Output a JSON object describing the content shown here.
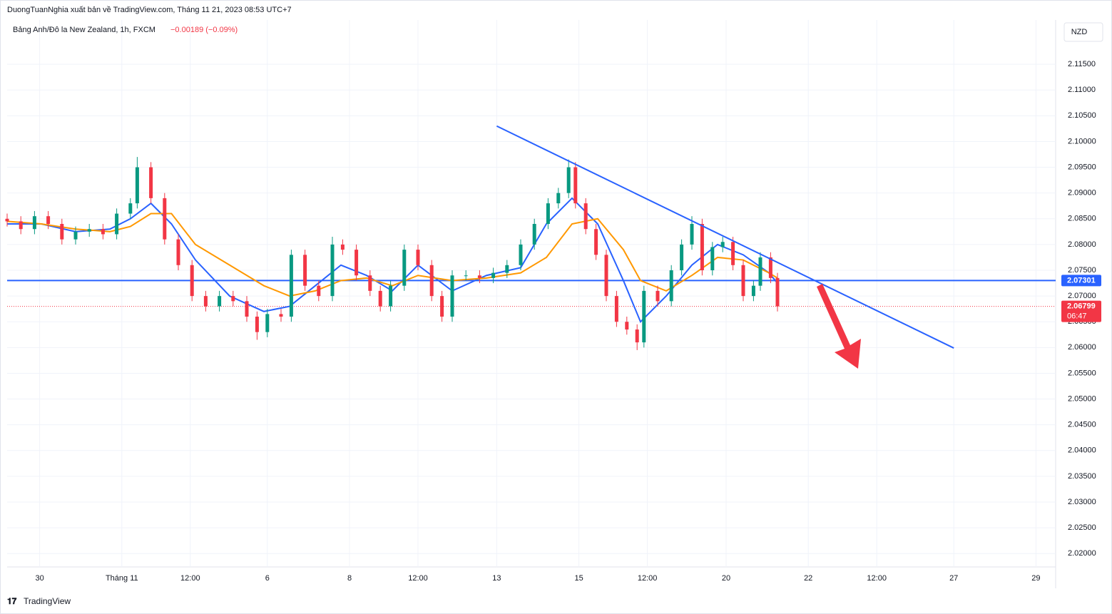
{
  "header": {
    "publisher": "DuongTuanNghia xuất bản về TradingView.com, Tháng 11 21, 2023 08:53 UTC+7",
    "symbol": "Bảng Anh/Đô la New Zealand, 1h, FXCM",
    "change": "−0.00189 (−0.09%)",
    "currency": "NZD",
    "brand": "TradingView"
  },
  "chart_data": {
    "type": "candlestick",
    "up_color": "#089981",
    "down_color": "#f23645",
    "grid": true,
    "xlim": [
      0,
      612.5
    ],
    "ylim": [
      2.0174,
      2.1236
    ],
    "xticks": [
      {
        "value": 19,
        "label": "30"
      },
      {
        "value": 67,
        "label": "Tháng 11"
      },
      {
        "value": 107,
        "label": "12:00"
      },
      {
        "value": 152,
        "label": "6"
      },
      {
        "value": 200,
        "label": "8"
      },
      {
        "value": 240,
        "label": "12:00"
      },
      {
        "value": 286,
        "label": "13"
      },
      {
        "value": 334,
        "label": "15"
      },
      {
        "value": 374,
        "label": "12:00"
      },
      {
        "value": 420,
        "label": "20"
      },
      {
        "value": 468,
        "label": "22"
      },
      {
        "value": 508,
        "label": "12:00"
      },
      {
        "value": 553,
        "label": "27"
      },
      {
        "value": 601,
        "label": "29"
      }
    ],
    "yticks": [
      {
        "value": 2.115,
        "label": "2.11500"
      },
      {
        "value": 2.11,
        "label": "2.11000"
      },
      {
        "value": 2.105,
        "label": "2.10500"
      },
      {
        "value": 2.1,
        "label": "2.10000"
      },
      {
        "value": 2.095,
        "label": "2.09500"
      },
      {
        "value": 2.09,
        "label": "2.09000"
      },
      {
        "value": 2.085,
        "label": "2.08500"
      },
      {
        "value": 2.08,
        "label": "2.08000"
      },
      {
        "value": 2.075,
        "label": "2.07500"
      },
      {
        "value": 2.07,
        "label": "2.07000"
      },
      {
        "value": 2.065,
        "label": "2.06500"
      },
      {
        "value": 2.06,
        "label": "2.06000"
      },
      {
        "value": 2.055,
        "label": "2.05500"
      },
      {
        "value": 2.05,
        "label": "2.05000"
      },
      {
        "value": 2.045,
        "label": "2.04500"
      },
      {
        "value": 2.04,
        "label": "2.04000"
      },
      {
        "value": 2.035,
        "label": "2.03500"
      },
      {
        "value": 2.03,
        "label": "2.03000"
      },
      {
        "value": 2.025,
        "label": "2.02500"
      },
      {
        "value": 2.02,
        "label": "2.02000"
      }
    ],
    "x": [
      0,
      8,
      16,
      24,
      32,
      40,
      48,
      56,
      64,
      72,
      76,
      84,
      92,
      100,
      108,
      116,
      124,
      132,
      140,
      146,
      152,
      160,
      166,
      174,
      182,
      190,
      196,
      204,
      212,
      218,
      224,
      232,
      240,
      248,
      254,
      260,
      268,
      276,
      284,
      292,
      300,
      308,
      316,
      322,
      328,
      332,
      338,
      344,
      350,
      356,
      362,
      368,
      372,
      380,
      388,
      394,
      400,
      406,
      412,
      418,
      424,
      430,
      436,
      440,
      446,
      450
    ],
    "open": [
      2.085,
      2.0845,
      2.083,
      2.0855,
      2.084,
      2.081,
      2.0825,
      2.083,
      2.082,
      2.086,
      2.088,
      2.095,
      2.089,
      2.081,
      2.076,
      2.07,
      2.068,
      2.07,
      2.069,
      2.066,
      2.063,
      2.0665,
      2.066,
      2.078,
      2.072,
      2.07,
      2.08,
      2.079,
      2.074,
      2.071,
      2.068,
      2.072,
      2.079,
      2.076,
      2.07,
      2.066,
      2.074,
      2.074,
      2.0735,
      2.0745,
      2.076,
      2.08,
      2.084,
      2.088,
      2.09,
      2.095,
      2.088,
      2.083,
      2.078,
      2.07,
      2.065,
      2.0635,
      2.061,
      2.071,
      2.069,
      2.075,
      2.08,
      2.084,
      2.075,
      2.0795,
      2.0805,
      2.076,
      2.07,
      2.072,
      2.0775,
      2.0735
    ],
    "high": [
      2.086,
      2.0855,
      2.0865,
      2.0865,
      2.085,
      2.0835,
      2.084,
      2.084,
      2.087,
      2.089,
      2.097,
      2.096,
      2.09,
      2.082,
      2.077,
      2.071,
      2.071,
      2.071,
      2.07,
      2.067,
      2.0675,
      2.0675,
      2.079,
      2.079,
      2.073,
      2.0815,
      2.081,
      2.08,
      2.075,
      2.072,
      2.073,
      2.08,
      2.08,
      2.077,
      2.071,
      2.075,
      2.075,
      2.075,
      2.0755,
      2.077,
      2.081,
      2.085,
      2.089,
      2.091,
      2.0965,
      2.096,
      2.089,
      2.084,
      2.079,
      2.071,
      2.066,
      2.0645,
      2.072,
      2.072,
      2.076,
      2.081,
      2.0855,
      2.085,
      2.0805,
      2.0815,
      2.0815,
      2.077,
      2.073,
      2.0785,
      2.0785,
      2.0745
    ],
    "low": [
      2.0835,
      2.082,
      2.082,
      2.083,
      2.08,
      2.08,
      2.0815,
      2.081,
      2.081,
      2.085,
      2.087,
      2.088,
      2.08,
      2.075,
      2.069,
      2.067,
      2.067,
      2.068,
      2.065,
      2.0615,
      2.062,
      2.065,
      2.065,
      2.071,
      2.069,
      2.069,
      2.078,
      2.073,
      2.07,
      2.067,
      2.067,
      2.071,
      2.075,
      2.069,
      2.065,
      2.065,
      2.073,
      2.0725,
      2.0725,
      2.0735,
      2.075,
      2.079,
      2.083,
      2.087,
      2.089,
      2.087,
      2.082,
      2.077,
      2.069,
      2.064,
      2.0625,
      2.0595,
      2.06,
      2.068,
      2.068,
      2.074,
      2.079,
      2.074,
      2.074,
      2.0785,
      2.075,
      2.069,
      2.069,
      2.071,
      2.0725,
      2.067
    ],
    "close": [
      2.0845,
      2.083,
      2.0855,
      2.084,
      2.081,
      2.0825,
      2.083,
      2.082,
      2.086,
      2.088,
      2.095,
      2.089,
      2.081,
      2.076,
      2.07,
      2.068,
      2.07,
      2.069,
      2.066,
      2.063,
      2.0665,
      2.066,
      2.078,
      2.072,
      2.07,
      2.08,
      2.079,
      2.074,
      2.071,
      2.068,
      2.072,
      2.079,
      2.076,
      2.07,
      2.066,
      2.074,
      2.074,
      2.0735,
      2.0745,
      2.076,
      2.08,
      2.084,
      2.088,
      2.09,
      2.095,
      2.088,
      2.083,
      2.078,
      2.07,
      2.065,
      2.0635,
      2.061,
      2.071,
      2.069,
      2.075,
      2.08,
      2.084,
      2.075,
      2.0795,
      2.0805,
      2.076,
      2.07,
      2.072,
      2.0775,
      2.0735,
      2.068
    ],
    "overlays": [
      {
        "color": "#2962ff",
        "x": [
          0,
          20,
          40,
          60,
          72,
          84,
          96,
          110,
          130,
          150,
          165,
          180,
          195,
          210,
          225,
          240,
          260,
          280,
          300,
          315,
          330,
          345,
          360,
          370,
          385,
          400,
          415,
          430,
          445,
          450
        ],
        "values": [
          2.084,
          2.084,
          2.0825,
          2.083,
          2.085,
          2.088,
          2.084,
          2.077,
          2.07,
          2.067,
          2.068,
          2.072,
          2.076,
          2.074,
          2.071,
          2.076,
          2.071,
          2.074,
          2.0755,
          2.084,
          2.089,
          2.084,
          2.073,
          2.065,
          2.07,
          2.076,
          2.08,
          2.078,
          2.0745,
          2.0725
        ]
      },
      {
        "color": "#ff9800",
        "x": [
          0,
          20,
          40,
          60,
          72,
          84,
          96,
          110,
          130,
          150,
          165,
          180,
          195,
          210,
          225,
          240,
          260,
          280,
          300,
          315,
          330,
          345,
          360,
          370,
          385,
          400,
          415,
          430,
          445,
          450
        ],
        "values": [
          2.0845,
          2.084,
          2.083,
          2.0825,
          2.0835,
          2.086,
          2.086,
          2.08,
          2.076,
          2.072,
          2.07,
          2.071,
          2.073,
          2.0735,
          2.072,
          2.074,
          2.073,
          2.0735,
          2.0745,
          2.0775,
          2.084,
          2.085,
          2.079,
          2.073,
          2.071,
          2.074,
          2.0775,
          2.077,
          2.0745,
          2.0735
        ]
      }
    ],
    "trendline": {
      "color": "#2962ff",
      "x": [
        286,
        553
      ],
      "y": [
        2.103,
        2.0599
      ]
    },
    "hline": {
      "value": 2.07301,
      "color": "#2962ff"
    },
    "last_price": {
      "value": 2.06799,
      "countdown": "06:47",
      "color": "#f23645"
    }
  }
}
